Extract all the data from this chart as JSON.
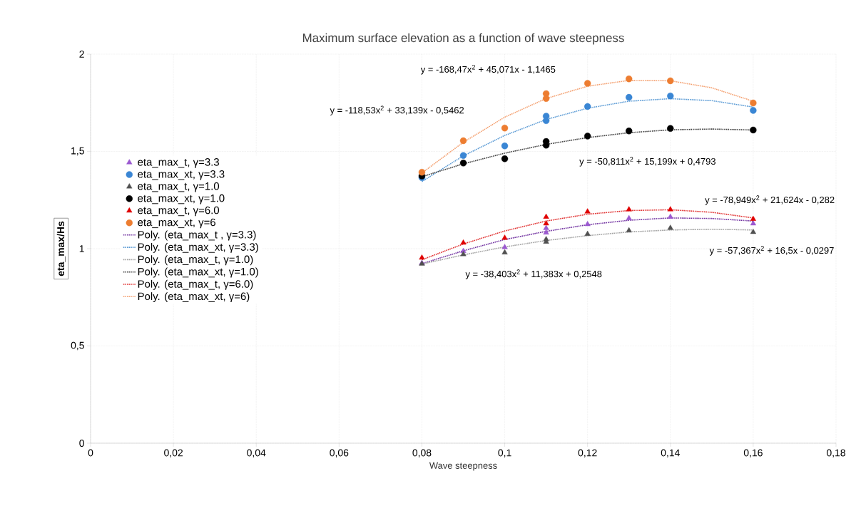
{
  "chart_data": {
    "type": "scatter",
    "title": "Maximum surface elevation as a function of wave steepness",
    "xlabel": "Wave steepness",
    "ylabel": "eta_max/Hs",
    "xlim": [
      0,
      0.18
    ],
    "ylim": [
      0,
      2
    ],
    "xticks": [
      0,
      {
        "value": 0.02,
        "label": "0,02"
      },
      {
        "value": 0.04,
        "label": "0,04"
      },
      {
        "value": 0.06,
        "label": "0,06"
      },
      {
        "value": 0.08,
        "label": "0,08"
      },
      {
        "value": 0.1,
        "label": "0,1"
      },
      {
        "value": 0.12,
        "label": "0,12"
      },
      {
        "value": 0.14,
        "label": "0,14"
      },
      {
        "value": 0.16,
        "label": "0,16"
      },
      {
        "value": 0.18,
        "label": "0,18"
      }
    ],
    "yticks": [
      0,
      {
        "value": 0.5,
        "label": "0,5"
      },
      1,
      {
        "value": 1.5,
        "label": "1,5"
      },
      2
    ],
    "grid": true,
    "legend": "left",
    "series": [
      {
        "name": "eta_max_t, γ=3.3",
        "color": "#9b59d0",
        "marker": "triangle",
        "x": [
          0.08,
          0.09,
          0.1,
          0.11,
          0.11,
          0.12,
          0.13,
          0.14,
          0.16
        ],
        "values": [
          0.926,
          0.987,
          1.007,
          1.082,
          1.105,
          1.125,
          1.156,
          1.163,
          1.129
        ]
      },
      {
        "name": "eta_max_xt, γ=3.3",
        "color": "#3a86d4",
        "marker": "circle",
        "x": [
          0.08,
          0.09,
          0.1,
          0.11,
          0.11,
          0.12,
          0.13,
          0.14,
          0.16
        ],
        "values": [
          1.365,
          1.479,
          1.528,
          1.681,
          1.658,
          1.731,
          1.778,
          1.785,
          1.711
        ]
      },
      {
        "name": "eta_max_t, γ=1.0",
        "color": "#505050",
        "marker": "triangle",
        "x": [
          0.08,
          0.09,
          0.1,
          0.11,
          0.11,
          0.12,
          0.13,
          0.14,
          0.16
        ],
        "values": [
          0.922,
          0.971,
          0.98,
          1.035,
          1.048,
          1.075,
          1.093,
          1.106,
          1.085
        ]
      },
      {
        "name": "eta_max_xt, γ=1.0",
        "color": "#000000",
        "marker": "circle",
        "x": [
          0.08,
          0.09,
          0.1,
          0.11,
          0.11,
          0.12,
          0.13,
          0.14,
          0.16
        ],
        "values": [
          1.374,
          1.44,
          1.462,
          1.551,
          1.532,
          1.579,
          1.605,
          1.618,
          1.61
        ]
      },
      {
        "name": "eta_max_t, γ=6.0",
        "color": "#e00000",
        "marker": "triangle",
        "x": [
          0.08,
          0.09,
          0.1,
          0.11,
          0.11,
          0.12,
          0.13,
          0.14,
          0.16
        ],
        "values": [
          0.953,
          1.03,
          1.055,
          1.163,
          1.129,
          1.19,
          1.201,
          1.201,
          1.152
        ]
      },
      {
        "name": "eta_max_xt, γ=6",
        "color": "#ed7d31",
        "marker": "circle",
        "x": [
          0.08,
          0.09,
          0.1,
          0.11,
          0.11,
          0.12,
          0.13,
          0.14,
          0.16
        ],
        "values": [
          1.393,
          1.555,
          1.62,
          1.797,
          1.772,
          1.85,
          1.873,
          1.863,
          1.749
        ]
      },
      {
        "name": "Poly. (eta_max_t , γ=3.3)",
        "type": "line",
        "line_style": "dotted",
        "color": "#7030a0",
        "x": [
          0.08,
          0.09,
          0.1,
          0.11,
          0.12,
          0.13,
          0.14,
          0.15,
          0.16
        ],
        "values": [
          0.923,
          0.989,
          1.047,
          1.089,
          1.123,
          1.146,
          1.158,
          1.155,
          1.142
        ]
      },
      {
        "name": "Poly. (eta_max_xt, γ=3.3)",
        "type": "line",
        "line_style": "dotted",
        "color": "#5b9bd5",
        "x": [
          0.08,
          0.09,
          0.1,
          0.11,
          0.12,
          0.13,
          0.14,
          0.15,
          0.16
        ],
        "values": [
          1.345,
          1.477,
          1.582,
          1.664,
          1.722,
          1.758,
          1.771,
          1.761,
          1.728
        ]
      },
      {
        "name": "Poly. (eta_max_t, γ=1.0)",
        "type": "line",
        "line_style": "dotted",
        "color": "#a0a0a0",
        "x": [
          0.08,
          0.09,
          0.1,
          0.11,
          0.12,
          0.13,
          0.14,
          0.15,
          0.16
        ],
        "values": [
          0.921,
          0.968,
          1.009,
          1.042,
          1.067,
          1.086,
          1.096,
          1.1,
          1.096
        ]
      },
      {
        "name": "Poly. (eta_max_xt, γ=1.0)",
        "type": "line",
        "line_style": "dotted",
        "color": "#404040",
        "x": [
          0.08,
          0.09,
          0.1,
          0.11,
          0.12,
          0.13,
          0.14,
          0.15,
          0.16
        ],
        "values": [
          1.37,
          1.436,
          1.491,
          1.536,
          1.571,
          1.596,
          1.611,
          1.615,
          1.61
        ]
      },
      {
        "name": "Poly. (eta_max_t, γ=6.0)",
        "type": "line",
        "line_style": "dotted",
        "color": "#e03030",
        "x": [
          0.08,
          0.09,
          0.1,
          0.11,
          0.12,
          0.13,
          0.14,
          0.15,
          0.16
        ],
        "values": [
          0.943,
          1.024,
          1.091,
          1.142,
          1.177,
          1.196,
          1.2,
          1.187,
          1.158
        ]
      },
      {
        "name": "Poly. (eta_max_xt, γ=6)",
        "type": "line",
        "line_style": "dotted",
        "color": "#f4a070",
        "x": [
          0.08,
          0.09,
          0.1,
          0.11,
          0.12,
          0.13,
          0.14,
          0.15,
          0.16
        ],
        "values": [
          1.389,
          1.547,
          1.676,
          1.772,
          1.835,
          1.865,
          1.863,
          1.827,
          1.758
        ]
      }
    ],
    "annotations": [
      "y = -168,47x$^{2}$ + 45,071x - 1,1465",
      "y = -118,53x$^{2}$ + 33,139x - 0,5462",
      "y = -50,811x$^{2}$ + 15,199x + 0,4793",
      "y = -78,949x$^{2}$ + 21,624x - 0,282",
      "y = -57,367x$^{2}$ + 16,5x - 0,0297",
      "y = -38,403x$^{2}$ + 11,383x + 0,2548"
    ]
  }
}
